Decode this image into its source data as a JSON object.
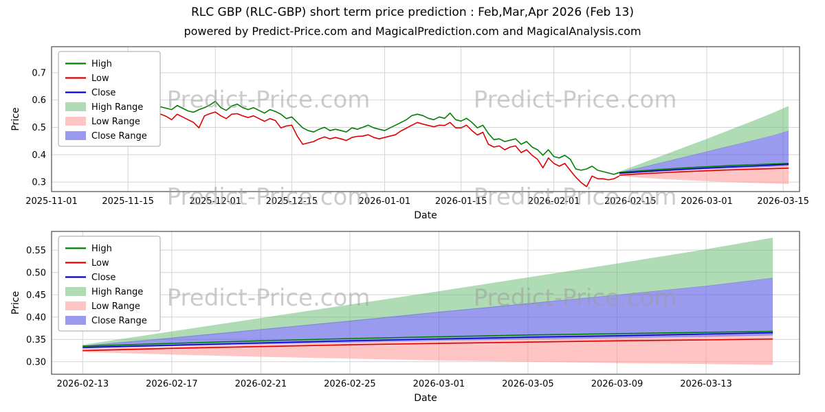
{
  "header": {
    "title": "RLC GBP (RLC-GBP) short term price prediction : Feb,Mar,Apr 2026 (Feb 13)",
    "subtitle": "powered by Predict-Price.com and MagicalPrediction.com and MagicalAnalysis.com"
  },
  "watermark_text": "Predict-Price.com",
  "colors": {
    "high_line": "#007f00",
    "low_line": "#dd0000",
    "close_line": "#0000cc",
    "high_range": "rgba(110,190,120,0.55)",
    "low_range": "rgba(255,150,150,0.55)",
    "close_range": "rgba(100,100,230,0.65)",
    "grid": "#d4d4d4",
    "watermark": "#9b9b9b"
  },
  "chart_data": [
    {
      "type": "line",
      "title": "",
      "xlabel": "Date",
      "ylabel": "Price",
      "xlim": [
        0,
        137
      ],
      "ylim": [
        0.265,
        0.795
      ],
      "grid": true,
      "legend_position": "upper-left",
      "xticks": [
        {
          "v": 0,
          "label": "2025-11-01"
        },
        {
          "v": 14,
          "label": "2025-11-15"
        },
        {
          "v": 30,
          "label": "2025-12-01"
        },
        {
          "v": 44,
          "label": "2025-12-15"
        },
        {
          "v": 61,
          "label": "2026-01-01"
        },
        {
          "v": 75,
          "label": "2026-01-15"
        },
        {
          "v": 92,
          "label": "2026-02-01"
        },
        {
          "v": 106,
          "label": "2026-02-15"
        },
        {
          "v": 120,
          "label": "2026-03-01"
        },
        {
          "v": 134,
          "label": "2026-03-15"
        }
      ],
      "yticks": [
        {
          "v": 0.3,
          "label": "0.3"
        },
        {
          "v": 0.4,
          "label": "0.4"
        },
        {
          "v": 0.5,
          "label": "0.5"
        },
        {
          "v": 0.6,
          "label": "0.6"
        },
        {
          "v": 0.7,
          "label": "0.7"
        }
      ],
      "legend": [
        {
          "label": "High",
          "swatch": "line",
          "color": "#007f00"
        },
        {
          "label": "Low",
          "swatch": "line",
          "color": "#dd0000"
        },
        {
          "label": "Close",
          "swatch": "line",
          "color": "#0000cc"
        },
        {
          "label": "High Range",
          "swatch": "patch",
          "color": "rgba(110,190,120,0.55)"
        },
        {
          "label": "Low Range",
          "swatch": "patch",
          "color": "rgba(255,150,150,0.55)"
        },
        {
          "label": "Close Range",
          "swatch": "patch",
          "color": "rgba(100,100,230,0.65)"
        }
      ],
      "watermarks": [
        {
          "fx": 0.29,
          "fy": 0.42
        },
        {
          "fx": 0.7,
          "fy": 0.42
        },
        {
          "fx": 0.29,
          "fy": 1.09
        },
        {
          "fx": 0.7,
          "fy": 1.09
        }
      ],
      "series": [
        {
          "name": "High Range",
          "kind": "band",
          "color": "rgba(110,190,120,0.55)",
          "x": [
            104,
            108,
            112,
            116,
            120,
            124,
            128,
            132,
            135
          ],
          "upper": [
            0.338,
            0.368,
            0.398,
            0.428,
            0.458,
            0.489,
            0.52,
            0.552,
            0.578
          ],
          "lower": [
            0.334,
            0.352,
            0.371,
            0.39,
            0.41,
            0.429,
            0.449,
            0.469,
            0.487
          ]
        },
        {
          "name": "Low Range",
          "kind": "band",
          "color": "rgba(255,150,150,0.55)",
          "x": [
            104,
            108,
            112,
            116,
            120,
            124,
            128,
            132,
            135
          ],
          "upper": [
            0.33,
            0.334,
            0.339,
            0.343,
            0.347,
            0.351,
            0.354,
            0.358,
            0.361
          ],
          "lower": [
            0.322,
            0.316,
            0.311,
            0.307,
            0.303,
            0.3,
            0.297,
            0.295,
            0.293
          ]
        },
        {
          "name": "Close Range",
          "kind": "band",
          "color": "rgba(100,100,230,0.65)",
          "x": [
            104,
            108,
            112,
            116,
            120,
            124,
            128,
            132,
            135
          ],
          "upper": [
            0.336,
            0.354,
            0.373,
            0.392,
            0.412,
            0.431,
            0.45,
            0.47,
            0.488
          ],
          "lower": [
            0.33,
            0.335,
            0.339,
            0.343,
            0.347,
            0.35,
            0.353,
            0.356,
            0.359
          ]
        },
        {
          "name": "High",
          "kind": "line",
          "color": "#007f00",
          "x": {
            "start": 4,
            "step": 1,
            "count": 101
          },
          "y": [
            0.775,
            0.72,
            0.69,
            0.66,
            0.655,
            0.64,
            0.625,
            0.61,
            0.615,
            0.63,
            0.605,
            0.59,
            0.575,
            0.585,
            0.575,
            0.565,
            0.575,
            0.57,
            0.565,
            0.58,
            0.57,
            0.56,
            0.555,
            0.565,
            0.572,
            0.582,
            0.595,
            0.572,
            0.562,
            0.578,
            0.585,
            0.572,
            0.565,
            0.572,
            0.562,
            0.552,
            0.565,
            0.558,
            0.548,
            0.532,
            0.538,
            0.518,
            0.498,
            0.488,
            0.483,
            0.493,
            0.5,
            0.488,
            0.493,
            0.488,
            0.483,
            0.498,
            0.493,
            0.5,
            0.508,
            0.498,
            0.493,
            0.488,
            0.498,
            0.508,
            0.518,
            0.528,
            0.543,
            0.548,
            0.543,
            0.533,
            0.528,
            0.538,
            0.533,
            0.552,
            0.528,
            0.523,
            0.533,
            0.518,
            0.498,
            0.508,
            0.478,
            0.455,
            0.458,
            0.448,
            0.453,
            0.458,
            0.438,
            0.448,
            0.428,
            0.418,
            0.398,
            0.418,
            0.393,
            0.388,
            0.398,
            0.383,
            0.348,
            0.343,
            0.348,
            0.358,
            0.343,
            0.338,
            0.333,
            0.328,
            0.335
          ]
        },
        {
          "name": "Low",
          "kind": "line",
          "color": "#dd0000",
          "x": {
            "start": 4,
            "step": 1,
            "count": 101
          },
          "y": [
            0.715,
            0.675,
            0.648,
            0.618,
            0.608,
            0.593,
            0.578,
            0.563,
            0.572,
            0.588,
            0.568,
            0.52,
            0.532,
            0.548,
            0.548,
            0.528,
            0.548,
            0.54,
            0.528,
            0.548,
            0.538,
            0.528,
            0.518,
            0.498,
            0.542,
            0.55,
            0.556,
            0.542,
            0.532,
            0.548,
            0.55,
            0.542,
            0.536,
            0.542,
            0.532,
            0.522,
            0.532,
            0.525,
            0.498,
            0.505,
            0.508,
            0.468,
            0.438,
            0.443,
            0.448,
            0.458,
            0.465,
            0.458,
            0.463,
            0.458,
            0.452,
            0.463,
            0.467,
            0.468,
            0.473,
            0.463,
            0.458,
            0.463,
            0.468,
            0.473,
            0.487,
            0.497,
            0.508,
            0.518,
            0.512,
            0.507,
            0.502,
            0.508,
            0.507,
            0.518,
            0.498,
            0.498,
            0.508,
            0.488,
            0.472,
            0.482,
            0.438,
            0.428,
            0.432,
            0.418,
            0.428,
            0.432,
            0.408,
            0.418,
            0.398,
            0.383,
            0.352,
            0.388,
            0.368,
            0.358,
            0.368,
            0.342,
            0.318,
            0.298,
            0.283,
            0.322,
            0.312,
            0.312,
            0.308,
            0.312,
            0.322
          ]
        },
        {
          "name": "High forecast",
          "kind": "line",
          "color": "#007f00",
          "x": [
            104,
            108,
            112,
            116,
            120,
            124,
            128,
            132,
            135
          ],
          "y": [
            0.335,
            0.341,
            0.347,
            0.352,
            0.356,
            0.36,
            0.363,
            0.366,
            0.368
          ]
        },
        {
          "name": "Low forecast",
          "kind": "line",
          "color": "#dd0000",
          "x": [
            104,
            108,
            112,
            116,
            120,
            124,
            128,
            132,
            135
          ],
          "y": [
            0.325,
            0.33,
            0.334,
            0.338,
            0.341,
            0.344,
            0.347,
            0.349,
            0.351
          ]
        },
        {
          "name": "Close",
          "kind": "line",
          "color": "#0000cc",
          "x": [
            104,
            108,
            112,
            116,
            120,
            124,
            128,
            132,
            135
          ],
          "y": [
            0.332,
            0.337,
            0.342,
            0.347,
            0.351,
            0.355,
            0.358,
            0.362,
            0.365
          ]
        }
      ]
    },
    {
      "type": "line",
      "title": "",
      "xlabel": "Date",
      "ylabel": "Price",
      "xlim": [
        102.6,
        136.2
      ],
      "ylim": [
        0.272,
        0.592
      ],
      "grid": true,
      "legend_position": "upper-left",
      "xticks": [
        {
          "v": 104,
          "label": "2026-02-13"
        },
        {
          "v": 108,
          "label": "2026-02-17"
        },
        {
          "v": 112,
          "label": "2026-02-21"
        },
        {
          "v": 116,
          "label": "2026-02-25"
        },
        {
          "v": 120,
          "label": "2026-03-01"
        },
        {
          "v": 124,
          "label": "2026-03-05"
        },
        {
          "v": 128,
          "label": "2026-03-09"
        },
        {
          "v": 132,
          "label": "2026-03-13"
        }
      ],
      "yticks": [
        {
          "v": 0.3,
          "label": "0.30"
        },
        {
          "v": 0.35,
          "label": "0.35"
        },
        {
          "v": 0.4,
          "label": "0.40"
        },
        {
          "v": 0.45,
          "label": "0.45"
        },
        {
          "v": 0.5,
          "label": "0.50"
        },
        {
          "v": 0.55,
          "label": "0.55"
        }
      ],
      "legend": [
        {
          "label": "High",
          "swatch": "line",
          "color": "#007f00"
        },
        {
          "label": "Low",
          "swatch": "line",
          "color": "#dd0000"
        },
        {
          "label": "Close",
          "swatch": "line",
          "color": "#0000cc"
        },
        {
          "label": "High Range",
          "swatch": "patch",
          "color": "rgba(110,190,120,0.55)"
        },
        {
          "label": "Low Range",
          "swatch": "patch",
          "color": "rgba(255,150,150,0.55)"
        },
        {
          "label": "Close Range",
          "swatch": "patch",
          "color": "rgba(100,100,230,0.65)"
        }
      ],
      "watermarks": [
        {
          "fx": 0.29,
          "fy": 0.52
        },
        {
          "fx": 0.7,
          "fy": 0.52
        }
      ],
      "series": [
        {
          "name": "High Range",
          "kind": "band",
          "color": "rgba(110,190,120,0.55)",
          "x": [
            104,
            108,
            112,
            116,
            120,
            124,
            128,
            132,
            135
          ],
          "upper": [
            0.338,
            0.368,
            0.398,
            0.428,
            0.458,
            0.489,
            0.52,
            0.552,
            0.578
          ],
          "lower": [
            0.334,
            0.352,
            0.371,
            0.39,
            0.41,
            0.429,
            0.449,
            0.469,
            0.487
          ]
        },
        {
          "name": "Low Range",
          "kind": "band",
          "color": "rgba(255,150,150,0.55)",
          "x": [
            104,
            108,
            112,
            116,
            120,
            124,
            128,
            132,
            135
          ],
          "upper": [
            0.33,
            0.334,
            0.339,
            0.343,
            0.347,
            0.351,
            0.354,
            0.358,
            0.361
          ],
          "lower": [
            0.322,
            0.316,
            0.311,
            0.307,
            0.303,
            0.3,
            0.297,
            0.295,
            0.293
          ]
        },
        {
          "name": "Close Range",
          "kind": "band",
          "color": "rgba(100,100,230,0.65)",
          "x": [
            104,
            108,
            112,
            116,
            120,
            124,
            128,
            132,
            135
          ],
          "upper": [
            0.336,
            0.354,
            0.373,
            0.392,
            0.412,
            0.431,
            0.45,
            0.47,
            0.488
          ],
          "lower": [
            0.33,
            0.335,
            0.339,
            0.343,
            0.347,
            0.35,
            0.353,
            0.356,
            0.359
          ]
        },
        {
          "name": "High",
          "kind": "line",
          "color": "#007f00",
          "x": [
            104,
            108,
            112,
            116,
            120,
            124,
            128,
            132,
            135
          ],
          "y": [
            0.335,
            0.341,
            0.347,
            0.352,
            0.356,
            0.36,
            0.363,
            0.366,
            0.368
          ]
        },
        {
          "name": "Low",
          "kind": "line",
          "color": "#dd0000",
          "x": [
            104,
            108,
            112,
            116,
            120,
            124,
            128,
            132,
            135
          ],
          "y": [
            0.325,
            0.33,
            0.334,
            0.338,
            0.341,
            0.344,
            0.347,
            0.349,
            0.351
          ]
        },
        {
          "name": "Close",
          "kind": "line",
          "color": "#0000cc",
          "x": [
            104,
            108,
            112,
            116,
            120,
            124,
            128,
            132,
            135
          ],
          "y": [
            0.332,
            0.337,
            0.342,
            0.347,
            0.351,
            0.355,
            0.358,
            0.362,
            0.365
          ]
        }
      ]
    }
  ]
}
